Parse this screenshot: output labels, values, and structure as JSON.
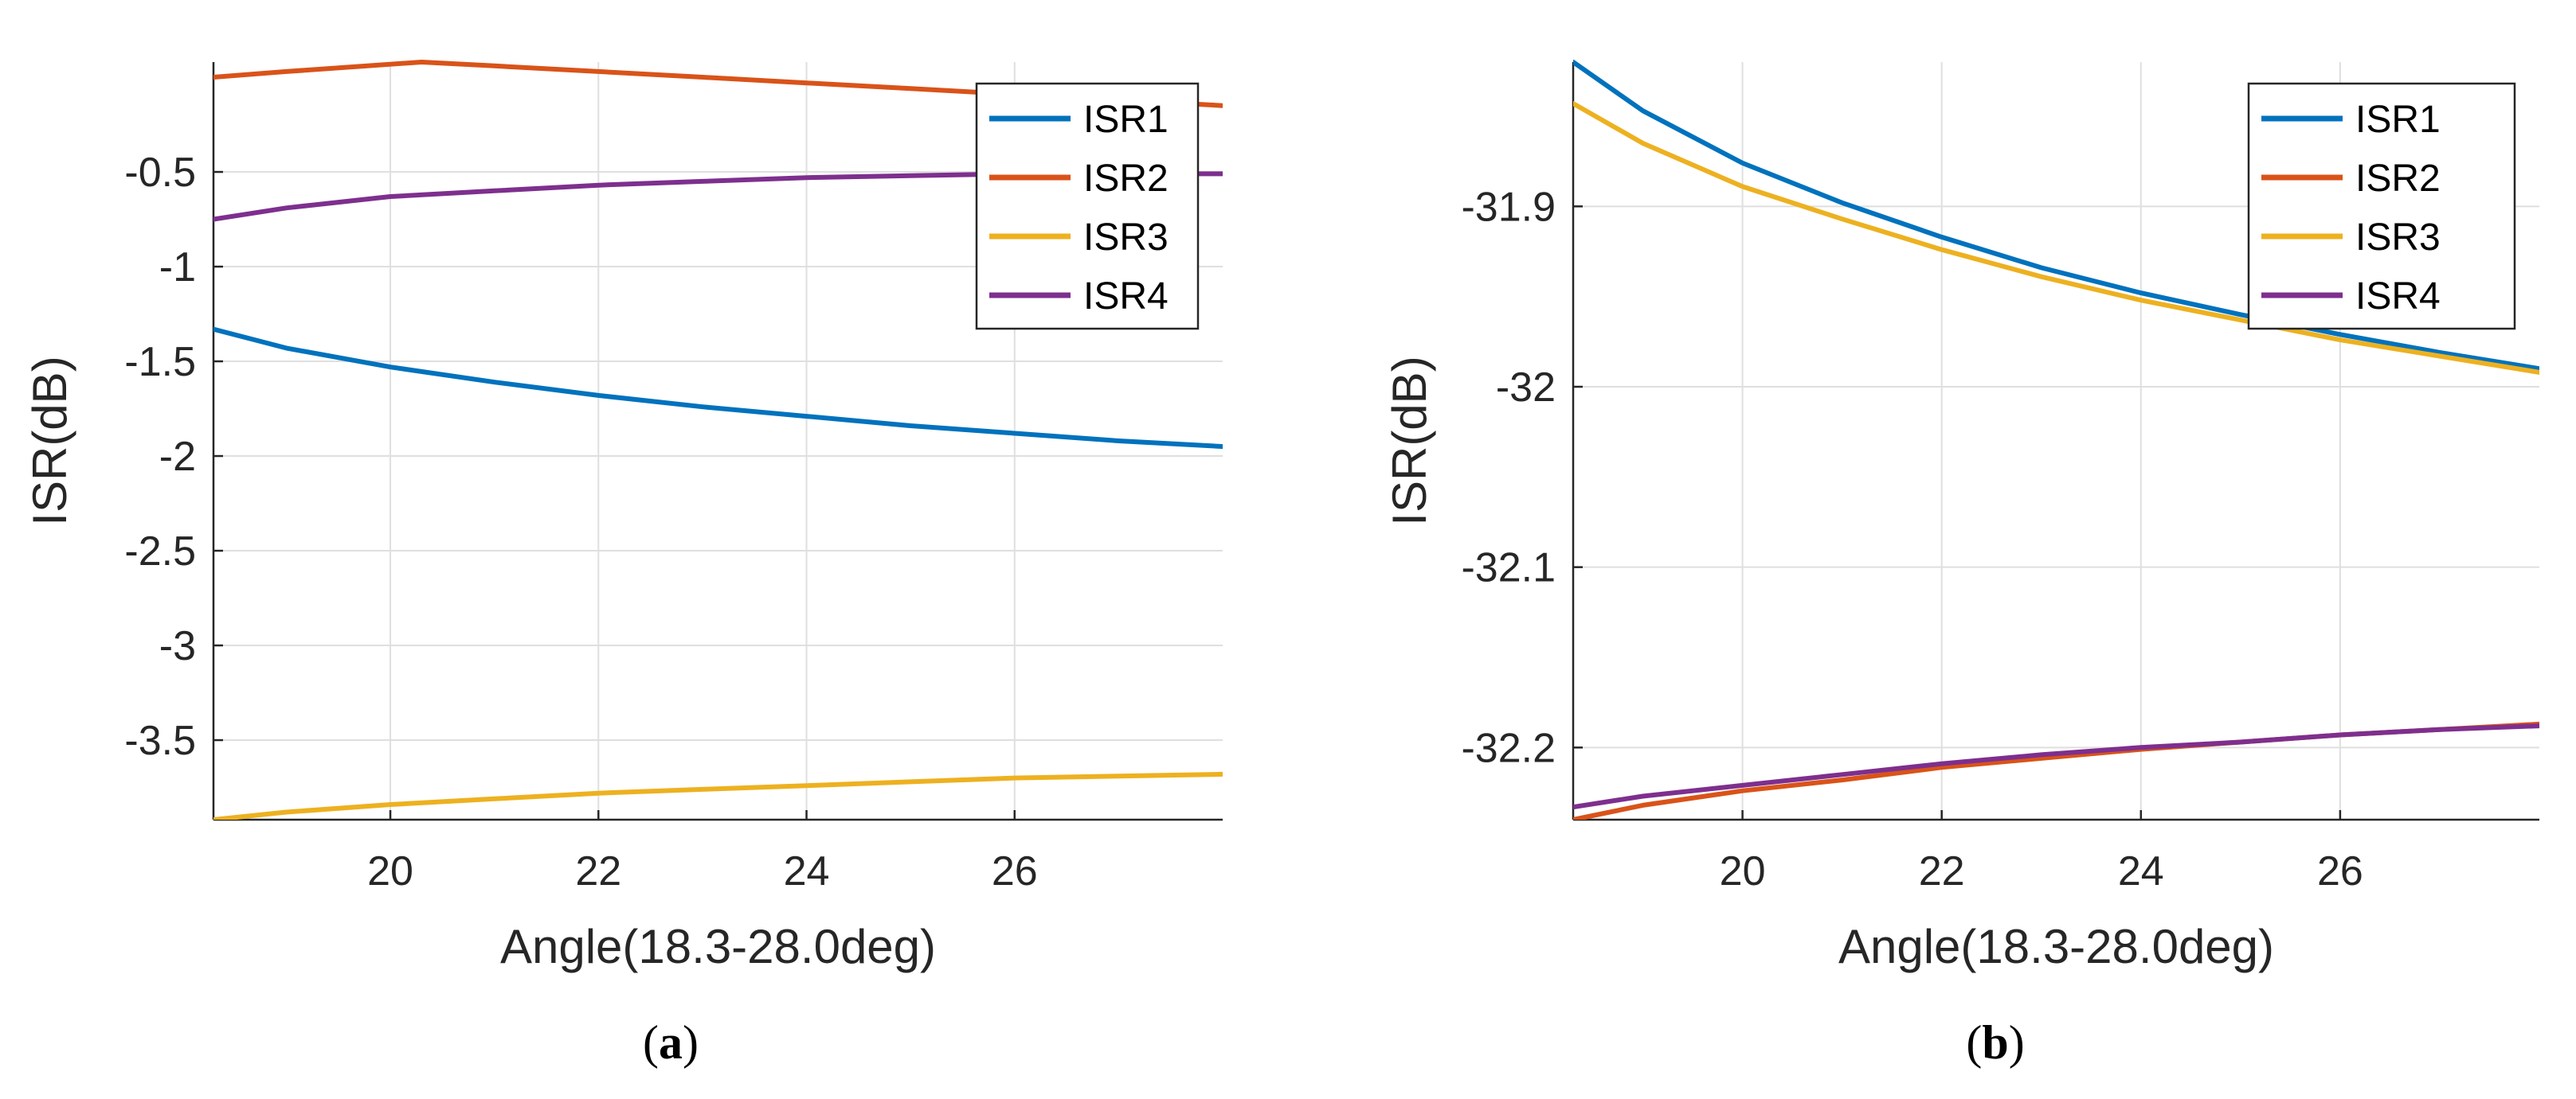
{
  "chart_data": [
    {
      "type": "line",
      "panel_label": "(a)",
      "panel_letter": "a",
      "xlabel": "Angle(18.3-28.0deg)",
      "ylabel": "ISR(dB)",
      "xlim": [
        18.3,
        28.0
      ],
      "ylim": [
        -3.92,
        0.08
      ],
      "grid": true,
      "legend_position": "top-right",
      "xticks": [
        20,
        22,
        24,
        26
      ],
      "xtick_labels": [
        "20",
        "22",
        "24",
        "26"
      ],
      "yticks": [
        -0.5,
        -1,
        -1.5,
        -2,
        -2.5,
        -3,
        -3.5
      ],
      "ytick_labels": [
        "-0.5",
        "-1",
        "-1.5",
        "-2",
        "-2.5",
        "-3",
        "-3.5"
      ],
      "series": [
        {
          "name": "ISR1",
          "color": "#0072BD",
          "x": [
            18.3,
            19,
            20,
            21,
            22,
            23,
            24,
            25,
            26,
            27,
            28
          ],
          "y": [
            -1.33,
            -1.43,
            -1.53,
            -1.61,
            -1.68,
            -1.74,
            -1.79,
            -1.84,
            -1.88,
            -1.92,
            -1.95
          ]
        },
        {
          "name": "ISR2",
          "color": "#D95319",
          "x": [
            18.3,
            19,
            20.3,
            21,
            22,
            23,
            24,
            25,
            26,
            27,
            28
          ],
          "y": [
            0.0,
            0.03,
            0.08,
            0.06,
            0.03,
            0.0,
            -0.03,
            -0.06,
            -0.09,
            -0.12,
            -0.15
          ]
        },
        {
          "name": "ISR3",
          "color": "#EDB120",
          "x": [
            18.3,
            19,
            20,
            21,
            22,
            23,
            24,
            25,
            26,
            27,
            28
          ],
          "y": [
            -3.92,
            -3.88,
            -3.84,
            -3.81,
            -3.78,
            -3.76,
            -3.74,
            -3.72,
            -3.7,
            -3.69,
            -3.68
          ]
        },
        {
          "name": "ISR4",
          "color": "#7E2F8E",
          "x": [
            18.3,
            19,
            20,
            21,
            22,
            23,
            24,
            25,
            26,
            27,
            28
          ],
          "y": [
            -0.75,
            -0.69,
            -0.63,
            -0.6,
            -0.57,
            -0.55,
            -0.53,
            -0.52,
            -0.51,
            -0.51,
            -0.51
          ]
        }
      ]
    },
    {
      "type": "line",
      "panel_label": "(b)",
      "panel_letter": "b",
      "xlabel": "Angle(18.3-28.0deg)",
      "ylabel": "ISR(dB)",
      "xlim": [
        18.3,
        28.0
      ],
      "ylim": [
        -32.24,
        -31.82
      ],
      "grid": true,
      "legend_position": "top-right",
      "xticks": [
        20,
        22,
        24,
        26
      ],
      "xtick_labels": [
        "20",
        "22",
        "24",
        "26"
      ],
      "yticks": [
        -31.9,
        -32,
        -32.1,
        -32.2
      ],
      "ytick_labels": [
        "-31.9",
        "-32",
        "-32.1",
        "-32.2"
      ],
      "series": [
        {
          "name": "ISR1",
          "color": "#0072BD",
          "x": [
            18.3,
            19,
            20,
            21,
            22,
            23,
            24,
            25,
            26,
            27,
            28
          ],
          "y": [
            -31.82,
            -31.847,
            -31.876,
            -31.898,
            -31.917,
            -31.934,
            -31.948,
            -31.96,
            -31.971,
            -31.981,
            -31.99
          ]
        },
        {
          "name": "ISR2",
          "color": "#D95319",
          "x": [
            18.3,
            19,
            20,
            21,
            22,
            23,
            24,
            25,
            26,
            27,
            28
          ],
          "y": [
            -32.24,
            -32.232,
            -32.224,
            -32.218,
            -32.211,
            -32.206,
            -32.201,
            -32.197,
            -32.193,
            -32.19,
            -32.187
          ]
        },
        {
          "name": "ISR3",
          "color": "#EDB120",
          "x": [
            18.3,
            19,
            20,
            21,
            22,
            23,
            24,
            25,
            26,
            27,
            28
          ],
          "y": [
            -31.843,
            -31.865,
            -31.889,
            -31.907,
            -31.924,
            -31.939,
            -31.952,
            -31.963,
            -31.974,
            -31.983,
            -31.992
          ]
        },
        {
          "name": "ISR4",
          "color": "#7E2F8E",
          "x": [
            18.3,
            19,
            20,
            21,
            22,
            23,
            24,
            25,
            26,
            27,
            28
          ],
          "y": [
            -32.233,
            -32.227,
            -32.221,
            -32.215,
            -32.209,
            -32.204,
            -32.2,
            -32.197,
            -32.193,
            -32.19,
            -32.188
          ]
        }
      ]
    }
  ]
}
